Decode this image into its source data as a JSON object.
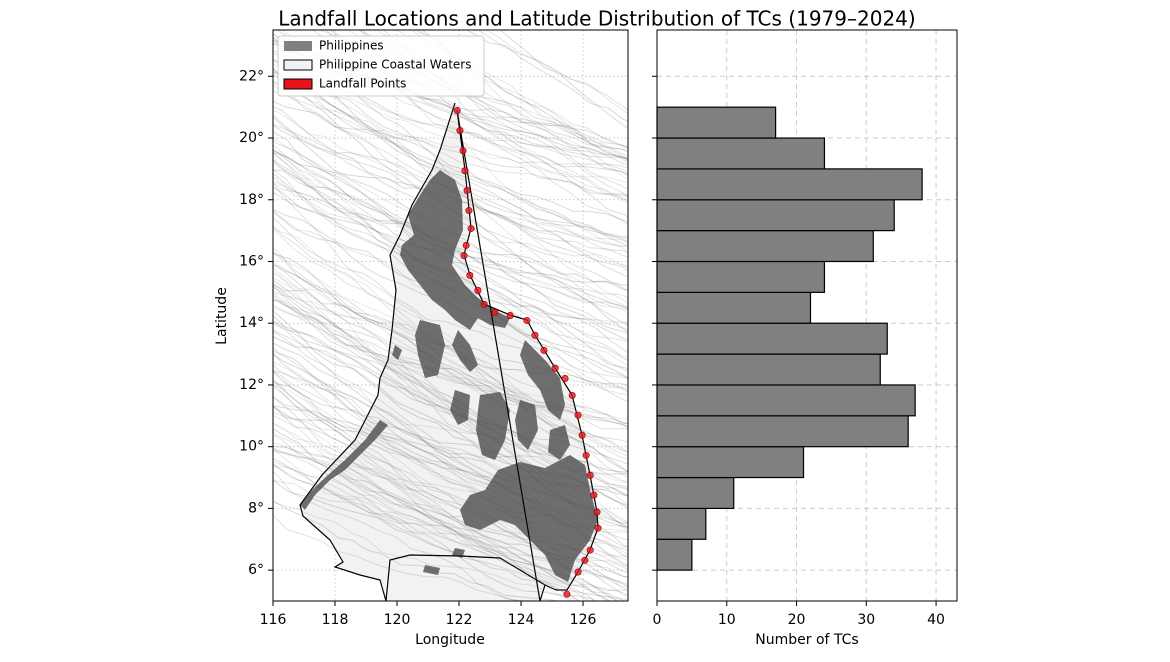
{
  "title": "Landfall Locations and Latitude Distribution of TCs (1979–2024)",
  "chart_data": [
    {
      "type": "map",
      "xlabel": "Longitude",
      "ylabel": "Latitude",
      "xlim": [
        116,
        127.45
      ],
      "ylim": [
        5,
        23.5
      ],
      "xticks": [
        116,
        118,
        120,
        122,
        124,
        126
      ],
      "yticks": [
        {
          "value": 6,
          "label": "6°"
        },
        {
          "value": 8,
          "label": "8°"
        },
        {
          "value": 10,
          "label": "10°"
        },
        {
          "value": 12,
          "label": "12°"
        },
        {
          "value": 14,
          "label": "14°"
        },
        {
          "value": 16,
          "label": "16°"
        },
        {
          "value": 18,
          "label": "18°"
        },
        {
          "value": 20,
          "label": "20°"
        },
        {
          "value": 22,
          "label": "22°"
        }
      ],
      "grid": true,
      "legend": "upper left",
      "series": [
        {
          "name": "Philippines",
          "color": "#808080"
        },
        {
          "name": "Philippine Coastal Waters",
          "color": "#f2f2f2"
        },
        {
          "name": "Landfall Points",
          "color": "#e8141b",
          "x": [
            121.94,
            122.03,
            122.13,
            122.19,
            122.26,
            122.32,
            122.39,
            122.23,
            122.16,
            122.35,
            122.61,
            122.81,
            123.16,
            123.65,
            124.19,
            124.45,
            124.74,
            125.1,
            125.42,
            125.65,
            125.84,
            125.97,
            126.1,
            126.23,
            126.35,
            126.45,
            126.48,
            126.23,
            126.06,
            125.84,
            125.48
          ],
          "y": [
            20.89,
            20.24,
            19.59,
            18.94,
            18.3,
            17.65,
            17.07,
            16.52,
            16.19,
            15.55,
            15.06,
            14.61,
            14.35,
            14.25,
            14.09,
            13.61,
            13.12,
            12.54,
            12.21,
            11.66,
            11.02,
            10.37,
            9.72,
            9.07,
            8.43,
            7.88,
            7.36,
            6.65,
            6.32,
            5.94,
            5.22
          ]
        }
      ]
    },
    {
      "type": "histogram",
      "orientation": "horizontal",
      "xlabel": "Number of TCs",
      "xlim": [
        0,
        43
      ],
      "xticks": [
        0,
        10,
        20,
        30,
        40
      ],
      "ylim": [
        5,
        23.5
      ],
      "yticks": [
        6,
        8,
        10,
        12,
        14,
        16,
        18,
        20,
        22
      ],
      "show_ytick_labels": false,
      "grid": true,
      "color": "#808080",
      "edgecolor": "#000000",
      "bins": [
        6,
        7,
        8,
        9,
        10,
        11,
        12,
        13,
        14,
        15,
        16,
        17,
        18,
        19,
        20,
        21
      ],
      "values": [
        5,
        7,
        11,
        21,
        36,
        37,
        32,
        33,
        22,
        24,
        31,
        34,
        38,
        24,
        17
      ]
    }
  ]
}
